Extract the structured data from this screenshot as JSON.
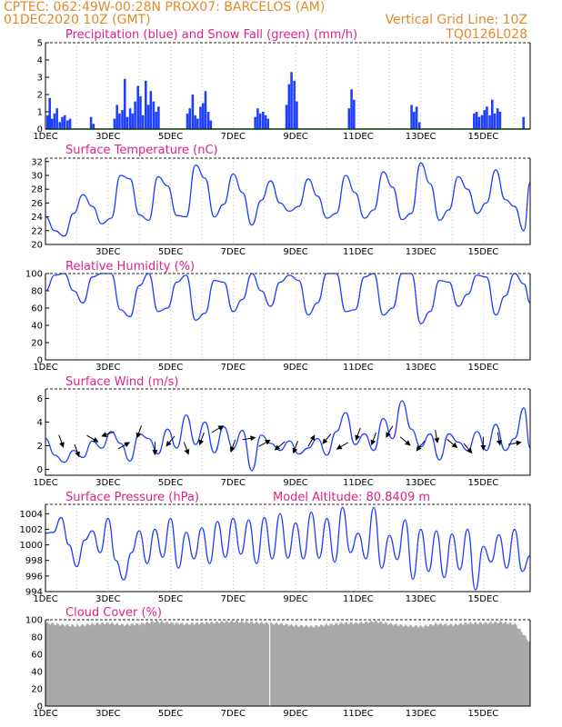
{
  "header": {
    "line1": "CPTEC:   062:49W-00:28N   PROX07: BARCELOS (AM)",
    "line2": "01DEC2020 10Z (GMT)",
    "right2": "Vertical Grid Line: 10Z",
    "right3": "TQ0126L028"
  },
  "colors": {
    "header": "#e08a2a",
    "title": "#e0208a",
    "precip": "#1f3fff",
    "snow": "#00a000",
    "line": "#1f3fff",
    "wind": "#000000",
    "cloud": "#a8a8a8"
  },
  "chart_data": [
    {
      "type": "bar",
      "title": "Precipitation (blue) and Snow Fall (green) (mm/h)",
      "x_tick_labels": [
        "1DEC",
        "3DEC",
        "5DEC",
        "7DEC",
        "9DEC",
        "11DEC",
        "13DEC",
        "15DEC"
      ],
      "ylim": [
        0,
        5
      ],
      "y_ticks": [
        0,
        1,
        2,
        3,
        4,
        5
      ],
      "x_range_days": [
        0,
        15.5
      ],
      "series": [
        {
          "name": "Precipitation",
          "color": "#1f3fff",
          "x_days": [
            0.03,
            0.1,
            0.17,
            0.25,
            0.33,
            0.42,
            0.5,
            0.58,
            0.67,
            0.75,
            1.42,
            1.5,
            2.17,
            2.25,
            2.33,
            2.42,
            2.5,
            2.58,
            2.67,
            2.75,
            2.83,
            2.92,
            3.0,
            3.08,
            3.17,
            3.25,
            3.33,
            3.42,
            3.5,
            3.58,
            4.5,
            4.58,
            4.67,
            4.75,
            4.83,
            4.92,
            5.0,
            5.08,
            5.17,
            5.25,
            6.67,
            6.75,
            6.83,
            6.92,
            7.0,
            7.08,
            7.67,
            7.75,
            7.83,
            7.92,
            8.0,
            9.67,
            9.75,
            9.83,
            11.67,
            11.75,
            11.83,
            11.92,
            13.67,
            13.75,
            13.83,
            13.92,
            14.0,
            14.08,
            14.17,
            14.25,
            14.33,
            14.42,
            14.5,
            15.25
          ],
          "values": [
            0.8,
            1.8,
            0.6,
            0.9,
            1.2,
            0.4,
            0.7,
            0.8,
            0.5,
            0.6,
            0.7,
            0.3,
            0.6,
            1.4,
            0.9,
            1.1,
            2.9,
            0.7,
            1.2,
            0.9,
            1.6,
            2.5,
            1.9,
            0.8,
            2.8,
            1.4,
            2.2,
            1.6,
            1.0,
            1.3,
            0.9,
            1.2,
            2.0,
            0.8,
            0.6,
            1.3,
            1.5,
            2.2,
            1.0,
            0.5,
            0.7,
            1.2,
            0.9,
            1.0,
            0.8,
            0.6,
            1.4,
            2.6,
            3.3,
            2.8,
            1.6,
            1.2,
            2.3,
            1.7,
            1.4,
            1.0,
            1.3,
            0.4,
            0.9,
            1.0,
            0.7,
            0.8,
            1.1,
            1.3,
            0.8,
            1.7,
            0.9,
            1.2,
            1.0,
            0.7
          ]
        },
        {
          "name": "Snow Fall",
          "color": "#00a000",
          "x_days": [
            0,
            15.5
          ],
          "values": [
            0,
            0
          ]
        }
      ]
    },
    {
      "type": "line",
      "title": "Surface Temperature (nC)",
      "x_tick_labels": [
        "3DEC",
        "5DEC",
        "7DEC",
        "9DEC",
        "11DEC",
        "13DEC",
        "15DEC"
      ],
      "ylim": [
        20,
        32.5
      ],
      "y_ticks": [
        20,
        22,
        24,
        26,
        28,
        30,
        32
      ],
      "x_range_days": [
        0,
        15.5
      ],
      "series": [
        {
          "name": "Temperature",
          "x_days": [
            0,
            0.3,
            0.6,
            0.9,
            1.2,
            1.5,
            1.8,
            2.1,
            2.4,
            2.7,
            3.0,
            3.3,
            3.6,
            3.9,
            4.2,
            4.5,
            4.8,
            5.1,
            5.4,
            5.7,
            6.0,
            6.3,
            6.6,
            6.9,
            7.2,
            7.5,
            7.8,
            8.1,
            8.4,
            8.7,
            9.0,
            9.3,
            9.6,
            9.9,
            10.2,
            10.5,
            10.8,
            11.1,
            11.4,
            11.7,
            12.0,
            12.3,
            12.6,
            12.9,
            13.2,
            13.5,
            13.8,
            14.1,
            14.4,
            14.7,
            15.0,
            15.3,
            15.5
          ],
          "values": [
            24.0,
            22.0,
            21.2,
            24.5,
            27.2,
            25.5,
            23.0,
            23.8,
            30.0,
            29.5,
            24.3,
            23.5,
            29.8,
            28.5,
            24.2,
            24.0,
            31.5,
            29.6,
            24.0,
            25.8,
            30.2,
            27.5,
            22.8,
            26.4,
            29.2,
            26.0,
            24.8,
            25.5,
            29.5,
            27.0,
            23.8,
            24.5,
            30.0,
            27.5,
            23.8,
            25.0,
            30.5,
            28.3,
            23.6,
            24.5,
            31.8,
            28.8,
            23.5,
            25.0,
            29.8,
            28.0,
            24.5,
            26.0,
            30.8,
            26.5,
            25.5,
            22.0,
            29.0
          ]
        }
      ]
    },
    {
      "type": "line",
      "title": "Relative Humidity (%)",
      "x_tick_labels": [
        "1DEC",
        "3DEC",
        "5DEC",
        "7DEC",
        "9DEC",
        "11DEC",
        "13DEC",
        "15DEC"
      ],
      "ylim": [
        0,
        100
      ],
      "y_ticks": [
        0,
        20,
        40,
        60,
        80,
        100
      ],
      "x_range_days": [
        0,
        15.5
      ],
      "series": [
        {
          "name": "Relative Humidity",
          "x_days": [
            0,
            0.3,
            0.6,
            0.9,
            1.2,
            1.5,
            1.8,
            2.1,
            2.4,
            2.7,
            3.0,
            3.3,
            3.6,
            3.9,
            4.2,
            4.5,
            4.8,
            5.1,
            5.4,
            5.7,
            6.0,
            6.3,
            6.6,
            6.9,
            7.2,
            7.5,
            7.8,
            8.1,
            8.4,
            8.7,
            9.0,
            9.3,
            9.6,
            9.9,
            10.2,
            10.5,
            10.8,
            11.1,
            11.4,
            11.7,
            12.0,
            12.3,
            12.6,
            12.9,
            13.2,
            13.5,
            13.8,
            14.1,
            14.4,
            14.7,
            15.0,
            15.3,
            15.5
          ],
          "values": [
            80,
            98,
            100,
            80,
            66,
            96,
            100,
            100,
            58,
            50,
            86,
            100,
            56,
            60,
            90,
            98,
            46,
            54,
            92,
            90,
            56,
            70,
            100,
            80,
            62,
            90,
            98,
            92,
            52,
            66,
            100,
            100,
            56,
            58,
            96,
            100,
            52,
            60,
            100,
            100,
            42,
            56,
            92,
            90,
            62,
            76,
            98,
            96,
            52,
            74,
            100,
            88,
            66
          ]
        }
      ]
    },
    {
      "type": "line",
      "title": "Surface Wind (m/s)",
      "x_tick_labels": [
        "1DEC",
        "3DEC",
        "5DEC",
        "7DEC",
        "9DEC",
        "11DEC",
        "13DEC",
        "15DEC"
      ],
      "ylim": [
        -0.5,
        6.8
      ],
      "y_ticks": [
        0,
        2,
        4,
        6
      ],
      "x_range_days": [
        0,
        15.5
      ],
      "series": [
        {
          "name": "Wind speed",
          "x_days": [
            0,
            0.3,
            0.6,
            0.9,
            1.2,
            1.5,
            1.8,
            2.1,
            2.4,
            2.7,
            3.0,
            3.3,
            3.6,
            3.9,
            4.2,
            4.5,
            4.8,
            5.1,
            5.4,
            5.7,
            6.0,
            6.3,
            6.6,
            6.9,
            7.2,
            7.5,
            7.8,
            8.1,
            8.4,
            8.7,
            9.0,
            9.3,
            9.6,
            9.9,
            10.2,
            10.5,
            10.8,
            11.1,
            11.4,
            11.7,
            12.0,
            12.3,
            12.6,
            12.9,
            13.2,
            13.5,
            13.8,
            14.1,
            14.4,
            14.7,
            15.0,
            15.3,
            15.5
          ],
          "values": [
            2.6,
            1.2,
            0.6,
            1.6,
            1.0,
            2.4,
            1.8,
            3.2,
            2.2,
            0.7,
            3.0,
            2.6,
            1.3,
            3.4,
            1.8,
            4.6,
            2.1,
            4.0,
            1.4,
            3.6,
            1.8,
            3.3,
            -0.1,
            2.9,
            2.2,
            1.6,
            2.4,
            1.3,
            1.8,
            2.6,
            1.2,
            3.2,
            4.8,
            2.1,
            3.0,
            1.6,
            4.3,
            2.6,
            5.8,
            3.4,
            1.9,
            3.0,
            0.8,
            3.0,
            2.3,
            1.6,
            3.2,
            1.6,
            3.8,
            1.6,
            2.6,
            5.2,
            1.8
          ]
        }
      ],
      "wind_vectors": {
        "x_days": [
          0.5,
          1.0,
          1.5,
          2.0,
          2.5,
          3.0,
          3.5,
          4.0,
          4.5,
          5.0,
          5.5,
          6.0,
          6.5,
          7.0,
          7.5,
          8.0,
          8.5,
          9.0,
          9.5,
          10.0,
          10.5,
          11.0,
          11.5,
          12.0,
          12.5,
          13.0,
          13.5,
          14.0,
          14.5,
          15.0
        ],
        "speed": [
          2.4,
          1.6,
          2.6,
          3.0,
          2.0,
          3.2,
          1.8,
          2.4,
          1.8,
          2.6,
          3.4,
          2.0,
          2.6,
          2.2,
          2.0,
          1.9,
          2.4,
          2.6,
          2.0,
          3.0,
          2.6,
          3.2,
          2.4,
          2.0,
          2.8,
          2.2,
          1.8,
          2.2,
          2.6,
          2.2
        ],
        "toward_deg": [
          160,
          160,
          120,
          250,
          60,
          200,
          180,
          220,
          160,
          200,
          60,
          200,
          80,
          60,
          230,
          200,
          30,
          220,
          240,
          200,
          200,
          210,
          130,
          220,
          170,
          130,
          140,
          180,
          170,
          80
        ]
      }
    },
    {
      "type": "line",
      "title": "Surface Pressure (hPa)",
      "annotation": "Model Altitude: 80.8409 m",
      "x_tick_labels": [
        "1DEC",
        "3DEC",
        "5DEC",
        "7DEC",
        "9DEC",
        "11DEC",
        "13DEC",
        "15DEC"
      ],
      "ylim": [
        994,
        1005.2
      ],
      "y_ticks": [
        994,
        996,
        998,
        1000,
        1002,
        1004
      ],
      "x_range_days": [
        0,
        15.5
      ],
      "series": [
        {
          "name": "Surface Pressure",
          "x_days": [
            0,
            0.25,
            0.5,
            0.75,
            1.0,
            1.25,
            1.5,
            1.75,
            2.0,
            2.25,
            2.5,
            2.75,
            3.0,
            3.25,
            3.5,
            3.75,
            4.0,
            4.25,
            4.5,
            4.75,
            5.0,
            5.25,
            5.5,
            5.75,
            6.0,
            6.25,
            6.5,
            6.75,
            7.0,
            7.25,
            7.5,
            7.75,
            8.0,
            8.25,
            8.5,
            8.75,
            9.0,
            9.25,
            9.5,
            9.75,
            10.0,
            10.25,
            10.5,
            10.75,
            11.0,
            11.25,
            11.5,
            11.75,
            12.0,
            12.25,
            12.5,
            12.75,
            13.0,
            13.25,
            13.5,
            13.75,
            14.0,
            14.25,
            14.5,
            14.75,
            15.0,
            15.25,
            15.5
          ],
          "values": [
            1001.5,
            1001.6,
            1003.5,
            1000.0,
            997.2,
            1000.6,
            1001.8,
            999.0,
            1003.4,
            998.0,
            995.5,
            999.0,
            1001.8,
            997.6,
            1002.0,
            998.4,
            1003.4,
            997.0,
            1001.6,
            998.2,
            1002.2,
            997.6,
            1003.0,
            998.4,
            1003.4,
            998.8,
            1003.2,
            997.6,
            1003.5,
            998.2,
            1004.0,
            998.3,
            1002.8,
            998.2,
            1004.2,
            998.3,
            1003.4,
            997.8,
            1004.8,
            999.0,
            1001.5,
            998.2,
            1004.8,
            997.0,
            1001.2,
            998.1,
            1003.2,
            995.6,
            1002.0,
            996.6,
            1001.8,
            995.8,
            1001.4,
            996.8,
            1002.0,
            994.2,
            999.8,
            997.8,
            1001.3,
            997.0,
            1002.0,
            996.6,
            998.6
          ]
        }
      ]
    },
    {
      "type": "bar",
      "title": "Cloud Cover (%)",
      "x_tick_labels": [
        "1DEC",
        "3DEC",
        "5DEC",
        "7DEC",
        "9DEC",
        "11DEC",
        "13DEC",
        "15DEC"
      ],
      "ylim": [
        0,
        100
      ],
      "y_ticks": [
        0,
        20,
        40,
        60,
        80,
        100
      ],
      "x_range_days": [
        0,
        15.5
      ],
      "series": [
        {
          "name": "Cloud Cover",
          "x_days": [
            0,
            0.5,
            1.0,
            1.5,
            2.0,
            2.5,
            3.0,
            3.5,
            4.0,
            4.5,
            5.0,
            5.5,
            6.0,
            6.5,
            7.0,
            7.5,
            8.0,
            8.5,
            9.0,
            9.5,
            10.0,
            10.5,
            11.0,
            11.5,
            12.0,
            12.5,
            13.0,
            13.5,
            14.0,
            14.5,
            15.0,
            15.5
          ],
          "values": [
            96,
            94,
            93,
            95,
            96,
            94,
            95,
            98,
            96,
            95,
            96,
            97,
            98,
            97,
            96,
            95,
            93,
            92,
            94,
            96,
            96,
            98,
            95,
            93,
            92,
            95,
            94,
            96,
            96,
            97,
            95,
            72
          ]
        }
      ]
    }
  ]
}
